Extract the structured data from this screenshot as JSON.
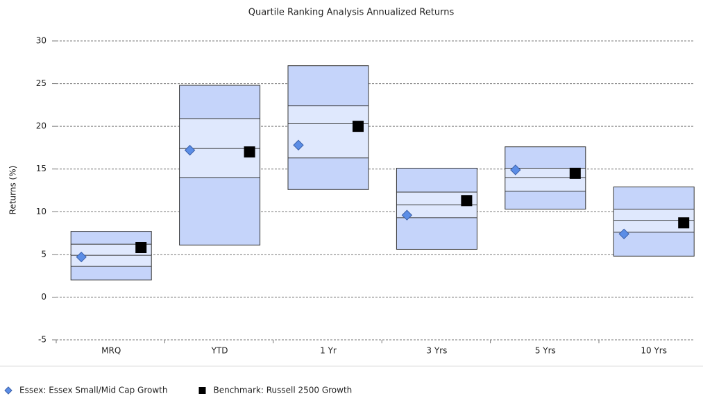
{
  "chart_data": {
    "type": "quartile-box",
    "title": "Quartile Ranking Analysis Annualized Returns",
    "y_label": "Returns (%)",
    "categories": [
      "MRQ",
      "YTD",
      "1 Yr",
      "3 Yrs",
      "5 Yrs",
      "10 Yrs"
    ],
    "boxes": {
      "high": [
        7.7,
        24.8,
        27.1,
        15.1,
        17.6,
        12.9
      ],
      "upper_quartile": [
        6.2,
        20.9,
        22.4,
        12.3,
        15.1,
        10.3
      ],
      "median": [
        4.9,
        17.4,
        20.3,
        10.8,
        14.0,
        9.0
      ],
      "lower_quartile": [
        3.6,
        14.0,
        16.3,
        9.3,
        12.4,
        7.6
      ],
      "low": [
        2.0,
        6.1,
        12.6,
        5.6,
        10.3,
        4.8
      ],
      "outer_color": "#c5d4fa",
      "inner_color": "#dfe8fd",
      "edge_color": "#333333"
    },
    "series": [
      {
        "name": "Essex: Essex Small/Mid Cap Growth",
        "color": "#5b8de6",
        "marker": "diamond",
        "values": [
          4.7,
          17.2,
          17.8,
          9.6,
          14.9,
          7.4
        ]
      },
      {
        "name": "Benchmark: Russell 2500 Growth",
        "color": "#000000",
        "marker": "square",
        "values": [
          5.8,
          17.0,
          20.0,
          11.3,
          14.5,
          8.7
        ]
      }
    ],
    "ylim": [
      -5,
      30
    ],
    "yticks": [
      -5,
      0,
      5,
      10,
      15,
      20,
      25,
      30
    ],
    "grid": true,
    "legend": "bottom"
  }
}
